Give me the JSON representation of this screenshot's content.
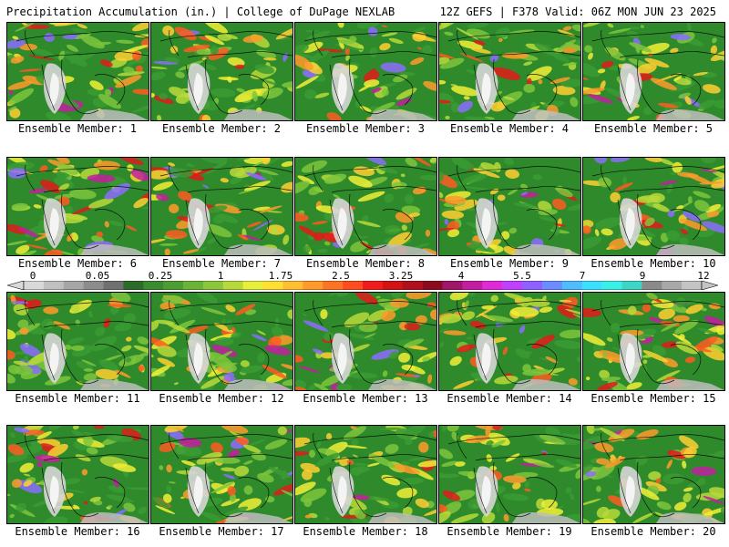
{
  "header": {
    "title": "Precipitation Accumulation (in.) | College of DuPage NEXLAB",
    "run_info": "12Z GEFS | F378 Valid: 06Z MON JUN 23 2025"
  },
  "panel_prefix": "Ensemble Member:",
  "members": [
    "1",
    "2",
    "3",
    "4",
    "5",
    "6",
    "7",
    "8",
    "9",
    "10",
    "11",
    "12",
    "13",
    "14",
    "15",
    "16",
    "17",
    "18",
    "19",
    "20"
  ],
  "colorbar": {
    "labels": [
      "0",
      "0.05",
      "0.25",
      "1",
      "1.75",
      "2.5",
      "3.25",
      "4",
      "5.5",
      "7",
      "9",
      "12"
    ],
    "colors": [
      "#d9d9d9",
      "#c0c0c0",
      "#a6a6a6",
      "#8c8c8c",
      "#707070",
      "#2e6b2a",
      "#3a8a30",
      "#4e9d34",
      "#6bb336",
      "#8cc63c",
      "#b7d93c",
      "#e8ef3a",
      "#ffe033",
      "#ffbf33",
      "#ff9a2b",
      "#ff7424",
      "#ff4d1f",
      "#f01c1c",
      "#d11313",
      "#b0101c",
      "#8c0a1f",
      "#a0166b",
      "#c21fa0",
      "#e02ad8",
      "#c040ff",
      "#9060ff",
      "#6a8cff",
      "#4fbcff",
      "#3ce0ff",
      "#38f0e6",
      "#3dd6c6",
      "#8a8a8a",
      "#a8a8a8",
      "#c4c4c4"
    ]
  }
}
